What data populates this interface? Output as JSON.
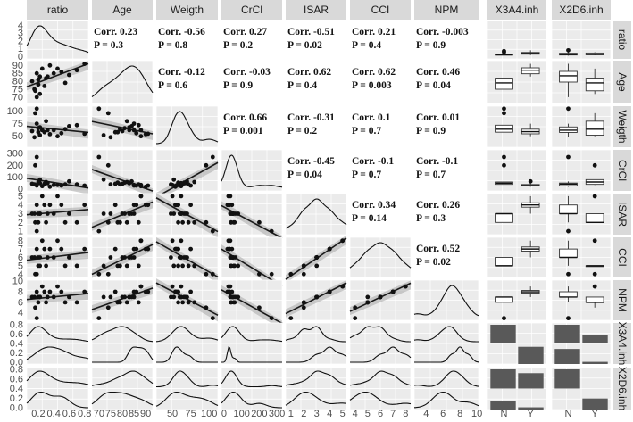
{
  "chart_data": {
    "type": "scatter",
    "variables": [
      "ratio",
      "Age",
      "Weigth",
      "CrCl",
      "ISAR",
      "CCI",
      "NPM"
    ],
    "factors": [
      {
        "name": "X3A4.inh",
        "levels": [
          "N",
          "Y"
        ]
      },
      {
        "name": "X2D6.inh",
        "levels": [
          "N",
          "Y"
        ]
      }
    ],
    "labels": {
      "corr": "Corr. ",
      "p": "P = "
    },
    "x_ticks": [
      [
        "0.2",
        "0.4",
        "0.6",
        "0.8"
      ],
      [
        "70",
        "75",
        "80",
        "85",
        "90"
      ],
      [
        "50",
        "75",
        "100"
      ],
      [
        "0",
        "100",
        "200",
        "300"
      ],
      [
        "1",
        "2",
        "3",
        "4",
        "5"
      ],
      [
        "4",
        "5",
        "6",
        "7",
        "8"
      ],
      [
        "4",
        "6",
        "8",
        "10"
      ]
    ],
    "x_ranges": [
      [
        0.05,
        0.85
      ],
      [
        67,
        93
      ],
      [
        28,
        112
      ],
      [
        -15,
        330
      ],
      [
        0.6,
        5.3
      ],
      [
        3.6,
        8.4
      ],
      [
        2.6,
        10.2
      ]
    ],
    "y_ticks": [
      [
        "0",
        "1",
        "2",
        "3",
        "4"
      ],
      [
        "70",
        "75",
        "80",
        "85",
        "90"
      ],
      [
        "50",
        "75",
        "100"
      ],
      [
        "0",
        "100",
        "200",
        "300"
      ],
      [
        "1",
        "2",
        "3",
        "4",
        "5"
      ],
      [
        "4",
        "5",
        "6",
        "7",
        "8"
      ],
      [
        "4",
        "6",
        "8",
        "10"
      ],
      [
        "0.0",
        "0.2",
        "0.4",
        "0.6",
        "0.8"
      ],
      [
        "0.0",
        "0.2",
        "0.4",
        "0.6",
        "0.8"
      ]
    ],
    "y_ranges": [
      [
        -0.3,
        4.6
      ],
      [
        66,
        93
      ],
      [
        28,
        110
      ],
      [
        -15,
        330
      ],
      [
        0.6,
        5.3
      ],
      [
        3.6,
        8.4
      ],
      [
        2.6,
        10.2
      ]
    ],
    "correlations": [
      {
        "row": "ratio",
        "col": "Age",
        "corr": "0.23",
        "p": "0.3"
      },
      {
        "row": "ratio",
        "col": "Weigth",
        "corr": "-0.56",
        "p": "0.8"
      },
      {
        "row": "ratio",
        "col": "CrCl",
        "corr": "0.27",
        "p": "0.2"
      },
      {
        "row": "ratio",
        "col": "ISAR",
        "corr": "-0.51",
        "p": "0.02"
      },
      {
        "row": "ratio",
        "col": "CCI",
        "corr": "0.21",
        "p": "0.4"
      },
      {
        "row": "ratio",
        "col": "NPM",
        "corr": "-0.003",
        "p": "0.9"
      },
      {
        "row": "Age",
        "col": "Weigth",
        "corr": "-0.12",
        "p": "0.6"
      },
      {
        "row": "Age",
        "col": "CrCl",
        "corr": "-0.03",
        "p": "0.9"
      },
      {
        "row": "Age",
        "col": "ISAR",
        "corr": "0.62",
        "p": "0.4"
      },
      {
        "row": "Age",
        "col": "CCI",
        "corr": "0.62",
        "p": "0.003"
      },
      {
        "row": "Age",
        "col": "NPM",
        "corr": "0.46",
        "p": "0.04"
      },
      {
        "row": "Weigth",
        "col": "CrCl",
        "corr": "0.66",
        "p": "0.001"
      },
      {
        "row": "Weigth",
        "col": "ISAR",
        "corr": "-0.31",
        "p": "0.2"
      },
      {
        "row": "Weigth",
        "col": "CCI",
        "corr": "0.1",
        "p": "0.7"
      },
      {
        "row": "Weigth",
        "col": "NPM",
        "corr": "0.01",
        "p": "0.9"
      },
      {
        "row": "CrCl",
        "col": "ISAR",
        "corr": "-0.45",
        "p": "0.04"
      },
      {
        "row": "CrCl",
        "col": "CCI",
        "corr": "-0.1",
        "p": "0.7"
      },
      {
        "row": "CrCl",
        "col": "NPM",
        "corr": "-0.1",
        "p": "0.7"
      },
      {
        "row": "ISAR",
        "col": "CCI",
        "corr": "0.34",
        "p": "0.14"
      },
      {
        "row": "ISAR",
        "col": "NPM",
        "corr": "0.26",
        "p": "0.3"
      },
      {
        "row": "CCI",
        "col": "NPM",
        "corr": "0.52",
        "p": "0.02"
      }
    ],
    "observations": {
      "ratio": [
        0.12,
        0.18,
        0.2,
        0.22,
        0.25,
        0.15,
        0.3,
        0.35,
        0.4,
        0.18,
        0.22,
        0.5,
        0.55,
        0.6,
        0.28,
        0.45,
        0.2,
        0.7,
        0.8,
        0.16,
        0.32
      ],
      "Age": [
        80,
        85,
        78,
        72,
        88,
        75,
        82,
        90,
        85,
        70,
        83,
        86,
        79,
        84,
        77,
        88,
        81,
        87,
        91,
        74,
        83
      ],
      "Weigth": [
        60,
        75,
        58,
        52,
        62,
        48,
        80,
        54,
        62,
        105,
        68,
        56,
        64,
        70,
        58,
        50,
        66,
        72,
        55,
        96,
        62
      ],
      "CrCl": [
        45,
        30,
        55,
        80,
        25,
        40,
        60,
        20,
        35,
        270,
        50,
        30,
        40,
        65,
        45,
        35,
        55,
        40,
        30,
        200,
        50
      ],
      "ISAR": [
        3,
        4,
        2,
        3,
        5,
        3,
        2,
        4,
        3,
        1,
        3,
        4,
        2,
        3,
        4,
        5,
        3,
        2,
        4,
        2,
        3
      ],
      "CCI": [
        6,
        7,
        5,
        5,
        8,
        6,
        5,
        7,
        6,
        4,
        6,
        7,
        5,
        6,
        7,
        8,
        6,
        5,
        7,
        4,
        6
      ],
      "NPM": [
        7,
        8,
        6,
        7,
        9,
        7,
        6,
        8,
        7,
        3,
        7,
        8,
        6,
        7,
        8,
        9,
        7,
        6,
        8,
        5,
        7
      ],
      "X3A4.inh": [
        "N",
        "Y",
        "N",
        "N",
        "Y",
        "N",
        "N",
        "Y",
        "N",
        "N",
        "N",
        "Y",
        "N",
        "Y",
        "N",
        "Y",
        "N",
        "N",
        "Y",
        "N",
        "Y"
      ],
      "X2D6.inh": [
        "N",
        "N",
        "N",
        "Y",
        "N",
        "N",
        "Y",
        "N",
        "N",
        "N",
        "N",
        "N",
        "Y",
        "N",
        "N",
        "Y",
        "N",
        "N",
        "N",
        "Y",
        "N"
      ]
    },
    "grid": true
  }
}
